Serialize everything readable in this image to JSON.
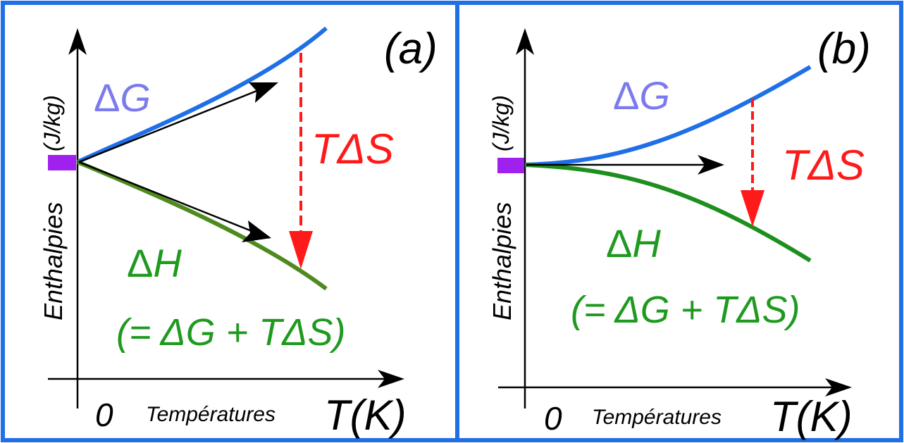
{
  "colors": {
    "frame": "#1f6fe6",
    "axis": "#000000",
    "dg_curve": "#1f6fe6",
    "dh_curve_a": "#4e8a1e",
    "dh_curve_b": "#1e8f1e",
    "dg_label": "#7b7bef",
    "dh_label": "#1f9a1f",
    "tds": "#ff1a1a",
    "marker": "#a020f0"
  },
  "panels": [
    {
      "id": "a",
      "panel_label": "(a)",
      "ylabel_main": "Enthalpies",
      "ylabel_unit": "(J/kg)",
      "dg_symbol": "Δ",
      "dg_var": "G",
      "tds_var": "T",
      "tds_symbol": "ΔS",
      "dh_symbol": "Δ",
      "dh_var": "H",
      "dh_formula": "(= ΔG + TΔS)",
      "origin_label": "0",
      "xlabel_word": "Températures",
      "xlabel_var": "T(K)"
    },
    {
      "id": "b",
      "panel_label": "(b)",
      "ylabel_main": "Enthalpies",
      "ylabel_unit": "(J/kg)",
      "dg_symbol": "Δ",
      "dg_var": "G",
      "tds_var": "T",
      "tds_symbol": "ΔS",
      "dh_symbol": "Δ",
      "dh_var": "H",
      "dh_formula": "(= ΔG + TΔS)",
      "origin_label": "0",
      "xlabel_word": "Températures",
      "xlabel_var": "T(K)"
    }
  ]
}
